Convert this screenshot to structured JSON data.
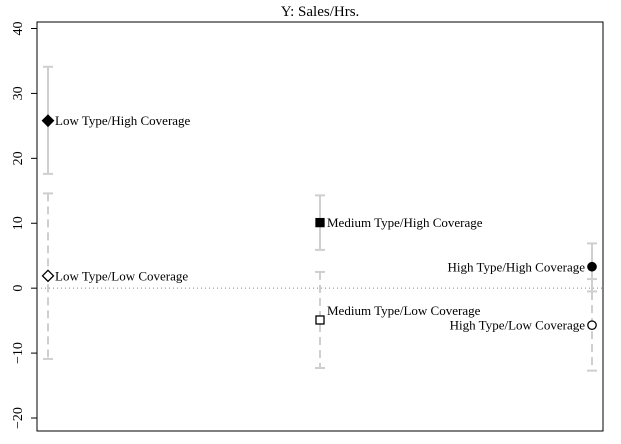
{
  "chart_data": {
    "type": "scatter",
    "title": "Y: Sales/Hrs.",
    "xlabel": "",
    "ylabel": "",
    "ylim": [
      -22,
      41
    ],
    "yticks": [
      -20,
      -10,
      0,
      10,
      20,
      30,
      40
    ],
    "ytick_labels": [
      "−20",
      "−10",
      "0",
      "10",
      "20",
      "30",
      "40"
    ],
    "reference_line": {
      "y": 0,
      "style": "dotted"
    },
    "error_bar_color": "#cfcfcf",
    "points": [
      {
        "label": "Low Type/High Coverage",
        "group": "Low Type",
        "y": 25.8,
        "ci": [
          17.6,
          34.1
        ],
        "marker": "diamond",
        "filled": true,
        "line_style": "solid",
        "label_side": "right"
      },
      {
        "label": "Low Type/Low Coverage",
        "group": "Low Type",
        "y": 1.9,
        "ci": [
          -10.9,
          14.6
        ],
        "marker": "diamond",
        "filled": false,
        "line_style": "dashed",
        "label_side": "right"
      },
      {
        "label": "Medium Type/High Coverage",
        "group": "Medium Type",
        "y": 10.1,
        "ci": [
          5.9,
          14.3
        ],
        "marker": "square",
        "filled": true,
        "line_style": "solid",
        "label_side": "right"
      },
      {
        "label": "Medium Type/Low Coverage",
        "group": "Medium Type",
        "y": -4.9,
        "ci": [
          -12.3,
          2.5
        ],
        "marker": "square",
        "filled": false,
        "line_style": "dashed",
        "label_side": "right"
      },
      {
        "label": "High Type/High Coverage",
        "group": "High Type",
        "y": 3.3,
        "ci": [
          -0.5,
          6.9
        ],
        "marker": "circle",
        "filled": true,
        "line_style": "solid",
        "label_side": "left"
      },
      {
        "label": "High Type/Low Coverage",
        "group": "High Type",
        "y": -5.7,
        "ci": [
          -12.7,
          1.4
        ],
        "marker": "circle",
        "filled": false,
        "line_style": "dashed",
        "label_side": "left"
      }
    ]
  }
}
